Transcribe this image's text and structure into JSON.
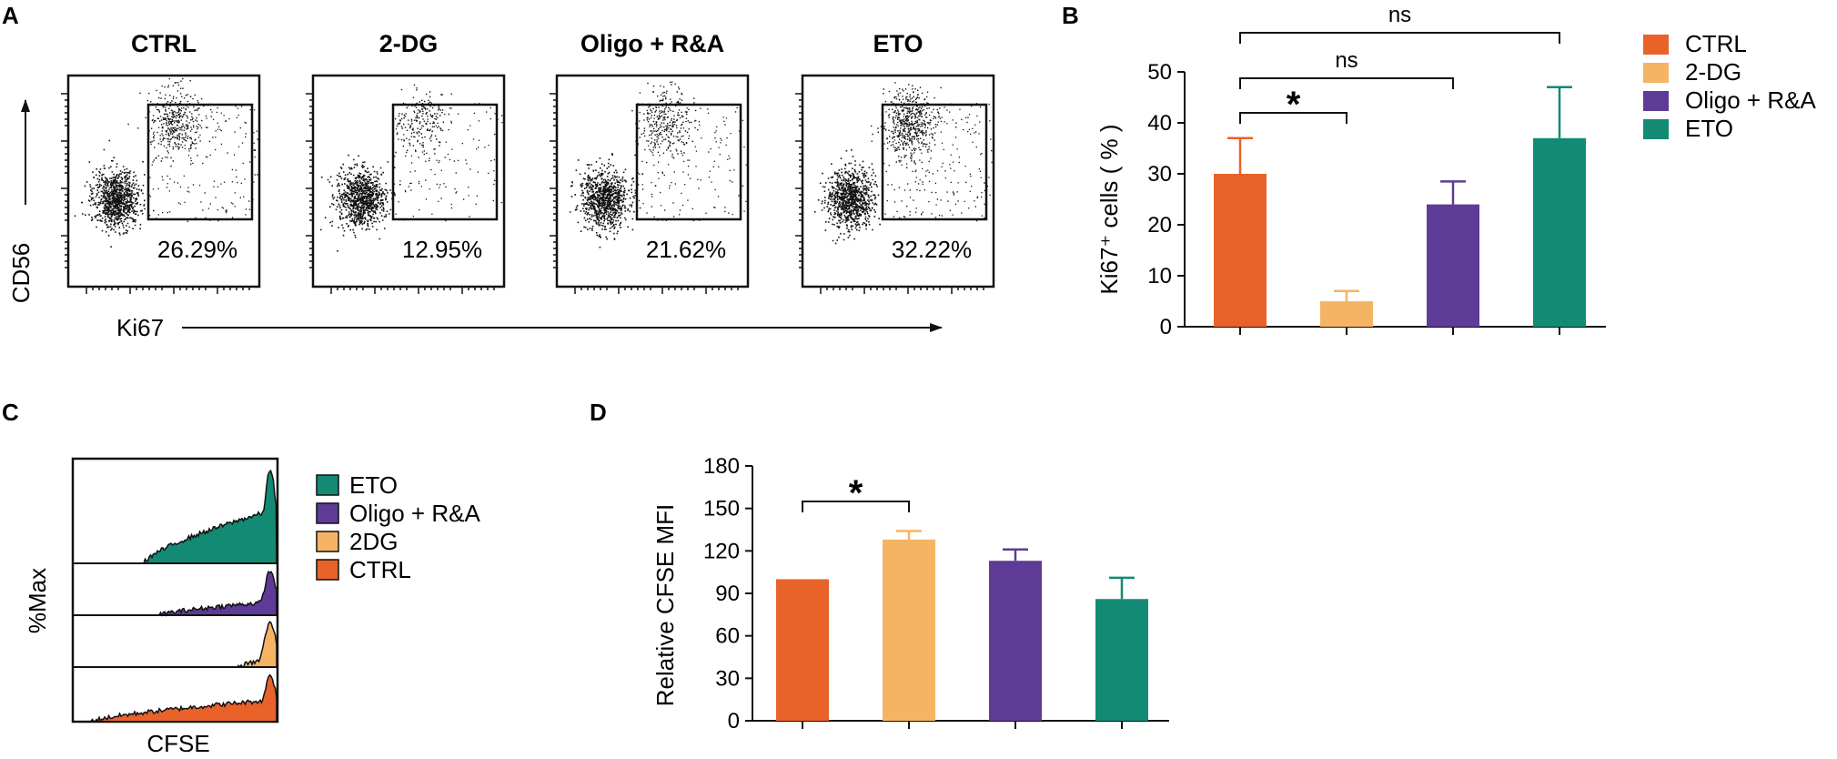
{
  "figure_labels": {
    "a": "A",
    "b": "B",
    "c": "C",
    "d": "D"
  },
  "panel_a": {
    "y_axis_label": "CD56",
    "x_axis_label": "Ki67",
    "plots": [
      {
        "title": "CTRL",
        "gate_percent": "26.29%"
      },
      {
        "title": "2-DG",
        "gate_percent": "12.95%"
      },
      {
        "title": "Oligo + R&A",
        "gate_percent": "21.62%"
      },
      {
        "title": "ETO",
        "gate_percent": "32.22%"
      }
    ]
  },
  "panel_c": {
    "y_axis_label": "%Max",
    "x_axis_label": "CFSE",
    "legend": [
      {
        "label": "ETO",
        "color": "#138a74"
      },
      {
        "label": "Oligo + R&A",
        "color": "#5e3b96"
      },
      {
        "label": "2DG",
        "color": "#f5b464"
      },
      {
        "label": "CTRL",
        "color": "#e8622a"
      }
    ]
  },
  "chart_data": [
    {
      "id": "B",
      "type": "bar",
      "categories": [
        "CTRL",
        "2-DG",
        "Oligo + R&A",
        "ETO"
      ],
      "values": [
        30,
        5,
        24,
        37
      ],
      "errors": [
        7,
        2,
        4.5,
        10
      ],
      "colors": [
        "#e8622a",
        "#f5b464",
        "#5e3b96",
        "#138a74"
      ],
      "ylabel": "Ki67⁺ cells ( % )",
      "ylim": [
        0,
        50
      ],
      "yticks": [
        0,
        10,
        20,
        30,
        40,
        50
      ],
      "legend": [
        "CTRL",
        "2-DG",
        "Oligo + R&A",
        "ETO"
      ],
      "significance": [
        {
          "from": 0,
          "to": 1,
          "label": "*"
        },
        {
          "from": 0,
          "to": 2,
          "label": "ns"
        },
        {
          "from": 0,
          "to": 3,
          "label": "ns"
        }
      ]
    },
    {
      "id": "D",
      "type": "bar",
      "categories": [
        "CTRL",
        "2-DG",
        "Oligo + R&A",
        "ETO"
      ],
      "values": [
        100,
        128,
        113,
        86
      ],
      "errors": [
        0,
        6,
        8,
        15
      ],
      "colors": [
        "#e8622a",
        "#f5b464",
        "#5e3b96",
        "#138a74"
      ],
      "ylabel": "Relative CFSE MFI",
      "ylim": [
        0,
        180
      ],
      "yticks": [
        0,
        30,
        60,
        90,
        120,
        150,
        180
      ],
      "significance": [
        {
          "from": 0,
          "to": 1,
          "label": "*"
        }
      ]
    }
  ]
}
